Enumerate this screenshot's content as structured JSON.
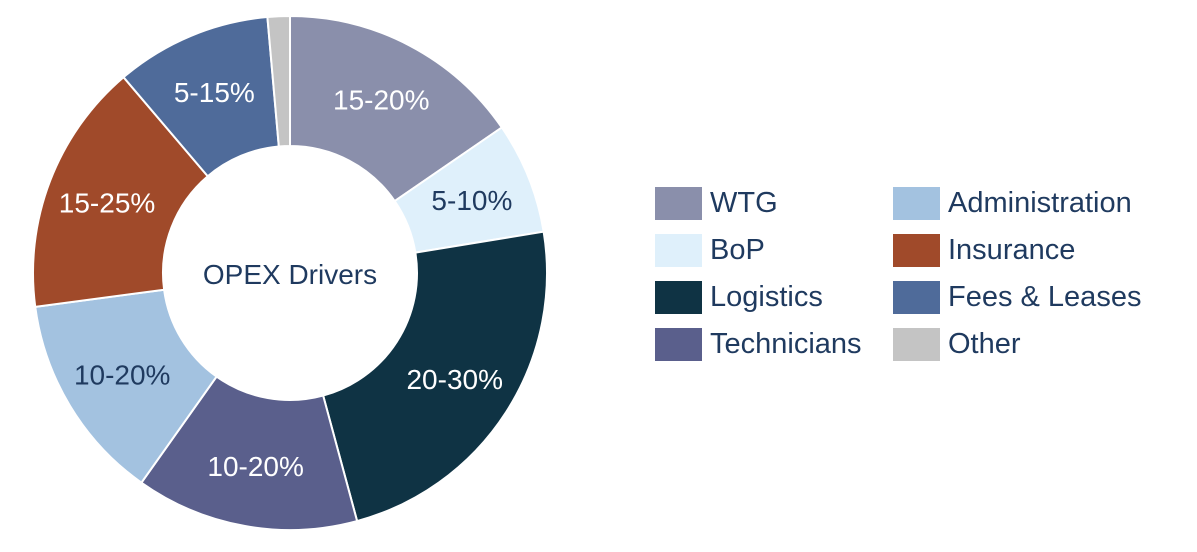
{
  "chart_data": {
    "type": "pie",
    "center_label": "OPEX Drivers",
    "slices": [
      {
        "name": "WTG",
        "label": "15-20%",
        "value": 16.5,
        "color": "#8a8fab",
        "label_color": "#ffffff"
      },
      {
        "name": "BoP",
        "label": "5-10%",
        "value": 7.5,
        "color": "#dff0fb",
        "label_color": "#1f3a5f"
      },
      {
        "name": "Logistics",
        "label": "20-30%",
        "value": 25,
        "color": "#0f3344",
        "label_color": "#ffffff"
      },
      {
        "name": "Technicians",
        "label": "10-20%",
        "value": 15,
        "color": "#5a5f8c",
        "label_color": "#ffffff"
      },
      {
        "name": "Administration",
        "label": "10-20%",
        "value": 14,
        "color": "#a3c2e0",
        "label_color": "#1f3a5f"
      },
      {
        "name": "Insurance",
        "label": "15-25%",
        "value": 17,
        "color": "#a04a2a",
        "label_color": "#ffffff"
      },
      {
        "name": "Fees & Leases",
        "label": "5-15%",
        "value": 10.5,
        "color": "#4f6b9a",
        "label_color": "#ffffff"
      },
      {
        "name": "Other",
        "label": "",
        "value": 1.5,
        "color": "#c4c4c4",
        "label_color": "#ffffff"
      }
    ],
    "legend": {
      "placement": "right",
      "columns": [
        [
          "WTG",
          "BoP",
          "Logistics",
          "Technicians"
        ],
        [
          "Administration",
          "Insurance",
          "Fees & Leases",
          "Other"
        ]
      ]
    }
  }
}
